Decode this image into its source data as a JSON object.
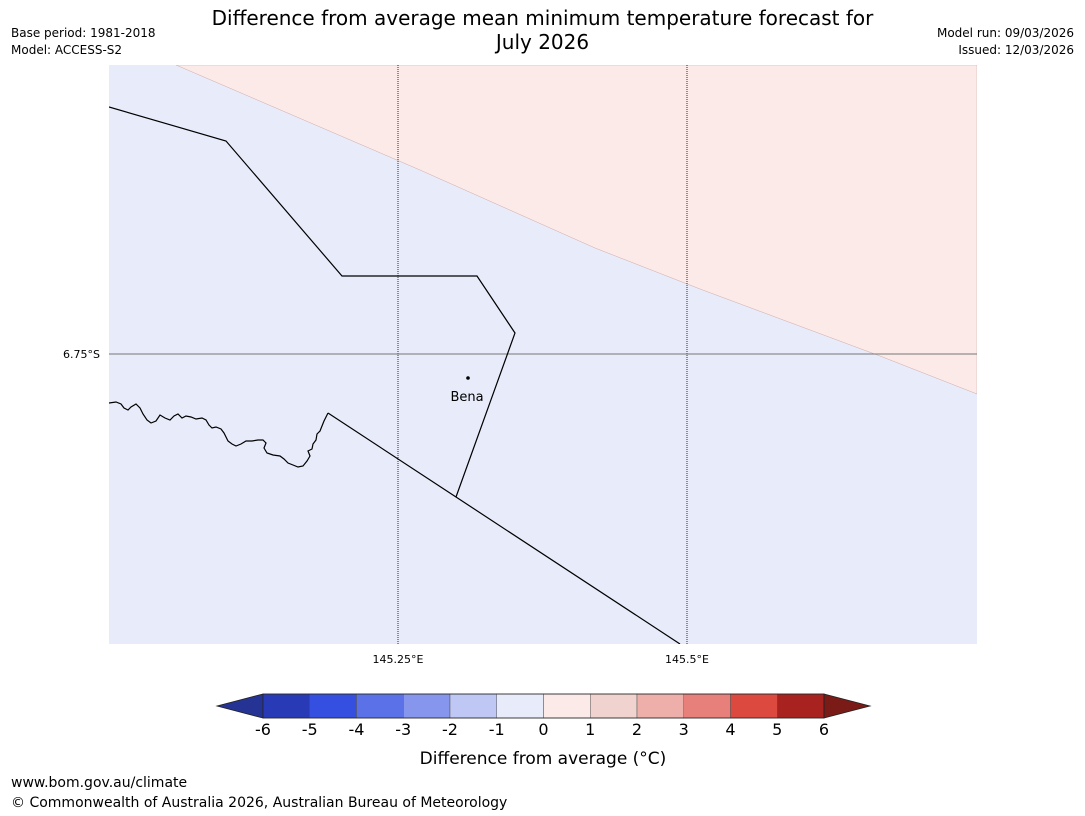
{
  "title": {
    "line1": "Difference from average mean minimum temperature forecast for",
    "line2": "July 2026"
  },
  "meta": {
    "base_period": "Base period: 1981-2018",
    "model": "Model: ACCESS-S2",
    "model_run": "Model run: 09/03/2026",
    "issued": "Issued: 12/03/2026"
  },
  "map": {
    "lon_labels": [
      "145.25°E",
      "145.5°E"
    ],
    "lat_labels": [
      "6.75°S"
    ],
    "place": {
      "name": "Bena"
    },
    "regions": [
      {
        "name": "below-average-0-to-minus-1",
        "color": "#e8ebfa"
      },
      {
        "name": "above-average-0-to-1",
        "color": "#fbeae8"
      }
    ]
  },
  "colorbar": {
    "label": "Difference from average (°C)",
    "ticks": [
      "-6",
      "-5",
      "-4",
      "-3",
      "-2",
      "-1",
      "0",
      "1",
      "2",
      "3",
      "4",
      "5",
      "6"
    ],
    "colors": [
      "#253494",
      "#283ab5",
      "#3550e0",
      "#5a71e8",
      "#8696ec",
      "#bfc7f5",
      "#e8ebfa",
      "#fbeae8",
      "#f0d3cf",
      "#eeaeaa",
      "#e7807b",
      "#dc4a3f",
      "#a8231f",
      "#7a1b17"
    ]
  },
  "footer": {
    "url": "www.bom.gov.au/climate",
    "copyright": "© Commonwealth of Australia 2026, Australian Bureau of Meteorology"
  }
}
